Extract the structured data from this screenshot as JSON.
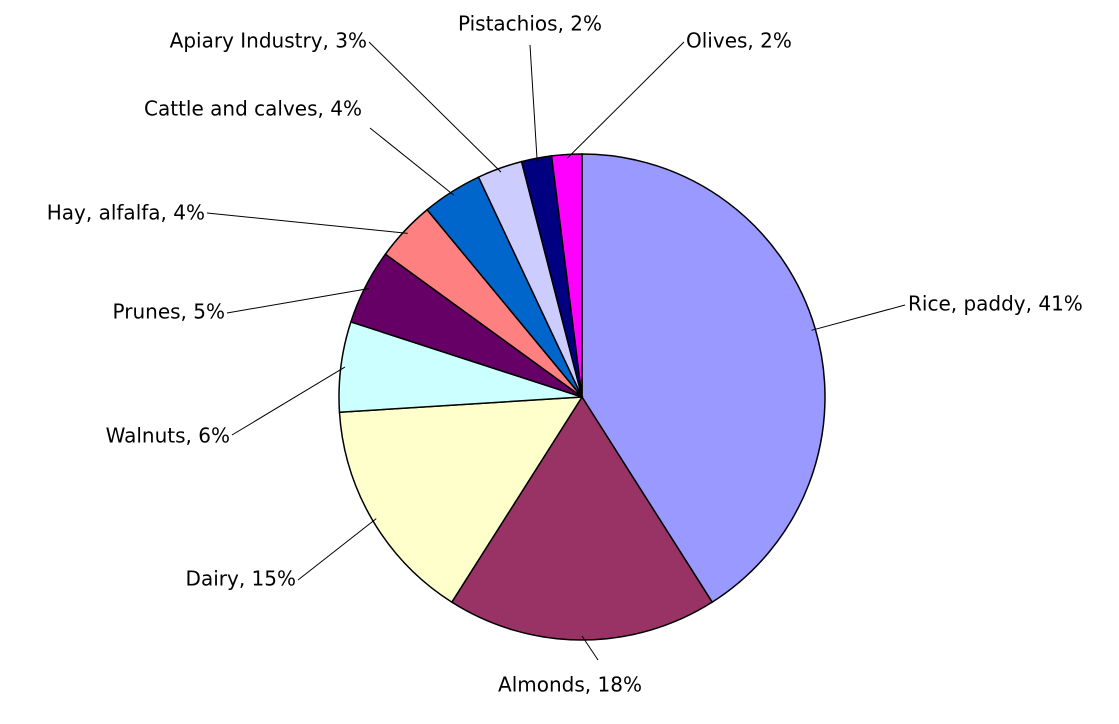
{
  "chart_data": {
    "type": "pie",
    "values": [
      41,
      18,
      15,
      6,
      5,
      4,
      4,
      3,
      2,
      2
    ],
    "value_labels": [
      "Rice, paddy, 41%",
      "Almonds, 18%",
      "Dairy, 15%",
      "Walnuts, 6%",
      "Prunes, 5%",
      "Hay, alfalfa, 4%",
      "Cattle and calves, 4%",
      "Apiary Industry, 3%",
      "Pistachios, 2%",
      "Olives, 2%"
    ],
    "colors": [
      "#9999ff",
      "#993366",
      "#ffffcc",
      "#ccffff",
      "#660066",
      "#ff8080",
      "#0066cc",
      "#ccccff",
      "#000080",
      "#ff00ff"
    ]
  }
}
